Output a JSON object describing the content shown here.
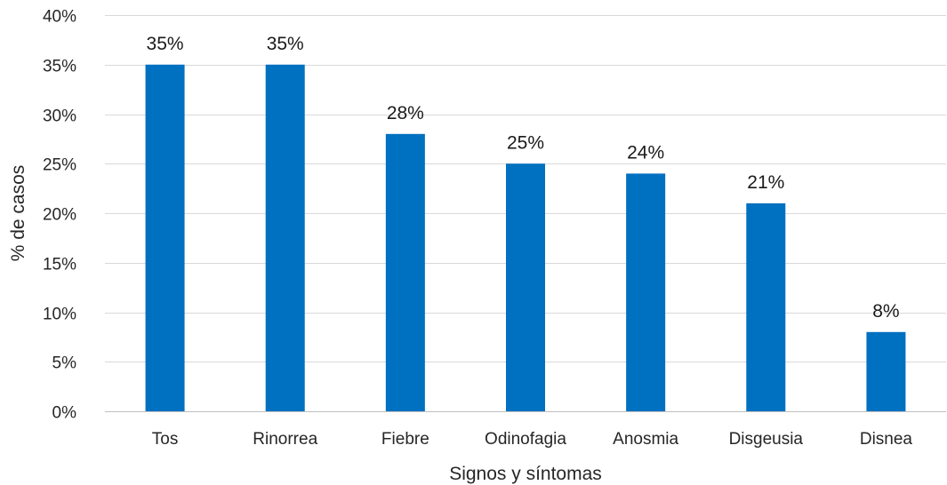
{
  "chart_data": {
    "type": "bar",
    "title": "",
    "xlabel": "Signos y síntomas",
    "ylabel": "% de casos",
    "categories": [
      "Tos",
      "Rinorrea",
      "Fiebre",
      "Odinofagia",
      "Anosmia",
      "Disgeusia",
      "Disnea"
    ],
    "values": [
      35,
      35,
      28,
      25,
      24,
      21,
      8
    ],
    "data_labels": [
      "35%",
      "35%",
      "28%",
      "25%",
      "24%",
      "21%",
      "8%"
    ],
    "ylim": [
      0,
      40
    ],
    "yticks": [
      0,
      5,
      10,
      15,
      20,
      25,
      30,
      35,
      40
    ],
    "ytick_labels": [
      "0%",
      "5%",
      "10%",
      "15%",
      "20%",
      "25%",
      "30%",
      "35%",
      "40%"
    ],
    "grid": true,
    "legend": "none",
    "colors": {
      "bar": "#0070C0",
      "grid": "#D9D9D9",
      "axis": "#BFBFBF"
    }
  }
}
